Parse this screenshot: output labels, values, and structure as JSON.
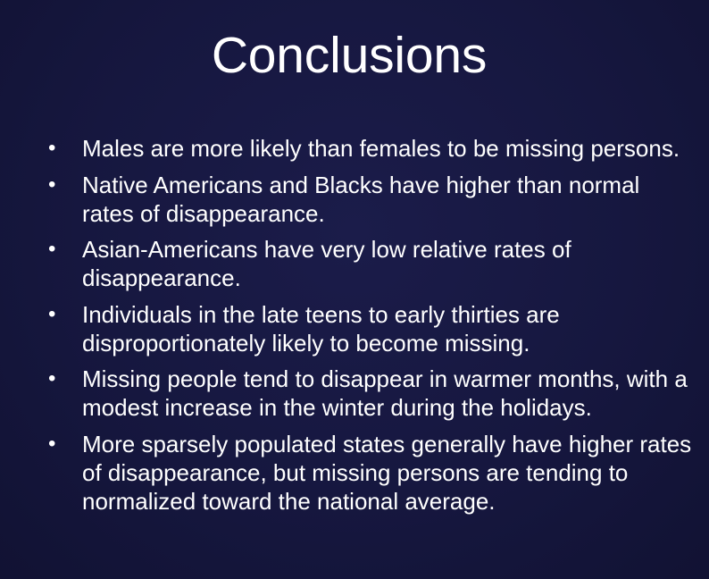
{
  "slide": {
    "title": "Conclusions",
    "bullet_glyph": "•",
    "bullets": [
      "Males are more likely than females to be missing persons.",
      "Native Americans and Blacks have higher than normal rates of disappearance.",
      "Asian-Americans have very low relative rates of disappearance.",
      "Individuals in the late teens to early thirties are disproportionately likely to become missing.",
      "Missing people tend to disappear in warmer months, with a modest increase in the winter during the holidays.",
      "More sparsely populated states generally have higher rates of disappearance, but missing persons are tending to normalized toward the national average."
    ]
  },
  "colors": {
    "background": "#15163d",
    "text": "#ffffff"
  }
}
